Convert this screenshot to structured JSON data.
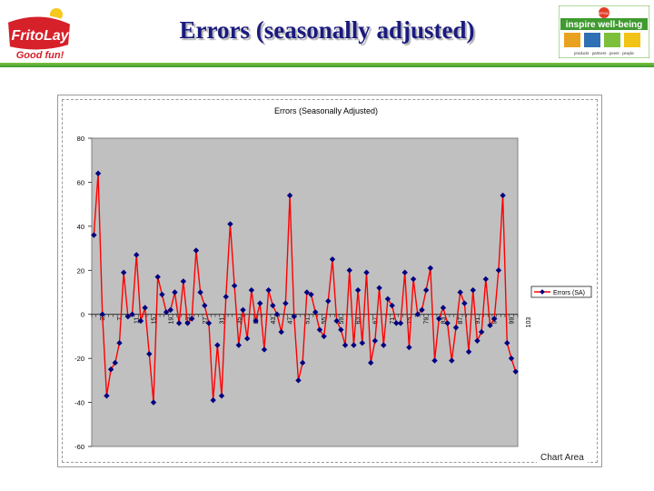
{
  "header": {
    "title": "Errors (seasonally adjusted)",
    "left_logo": {
      "brand": "FritoLay",
      "tagline": "Good fun!"
    },
    "right_logo": {
      "headline": "inspire well-being",
      "badge": "PEPSICO",
      "subline": "products · partners · peers · people"
    }
  },
  "tooltip": "Chart Area",
  "colors": {
    "series_line": "#ff0000",
    "marker": "#000080",
    "plot_bg": "#c0c0c0",
    "header_green": "#4aa533",
    "title": "#1a1a80"
  },
  "chart_data": {
    "type": "line",
    "title": "Errors (Seasonally Adjusted)",
    "xlabel": "",
    "ylabel": "",
    "ylim": [
      -60,
      80
    ],
    "yticks": [
      80,
      60,
      40,
      20,
      0,
      -20,
      -40,
      -60
    ],
    "x_start": 1,
    "xtick_labels": [
      "3",
      "7",
      "11",
      "15",
      "19",
      "23",
      "27",
      "31",
      "35",
      "39",
      "43",
      "47",
      "51",
      "55",
      "59",
      "63",
      "67",
      "71",
      "75",
      "79",
      "83",
      "87",
      "91",
      "95",
      "99",
      "103"
    ],
    "legend_position": "right",
    "grid": false,
    "series": [
      {
        "name": "Errors (SA)",
        "values": [
          36,
          64,
          0,
          -37,
          -25,
          -22,
          -13,
          19,
          -1,
          0,
          27,
          -3,
          3,
          -18,
          -40,
          17,
          9,
          1,
          2,
          10,
          -4,
          15,
          -4,
          -2,
          29,
          10,
          4,
          -4,
          -39,
          -14,
          -37,
          8,
          41,
          13,
          -14,
          2,
          -11,
          11,
          -3,
          5,
          -16,
          11,
          4,
          0,
          -8,
          5,
          54,
          -1,
          -30,
          -22,
          10,
          9,
          1,
          -7,
          -10,
          6,
          25,
          -3,
          -7,
          -14,
          20,
          -14,
          11,
          -13,
          19,
          -22,
          -12,
          12,
          -14,
          7,
          4,
          -4,
          -4,
          19,
          -15,
          16,
          0,
          2,
          11,
          21,
          -21,
          -2,
          3,
          -4,
          -21,
          -6,
          10,
          5,
          -17,
          11,
          -12,
          -8,
          16,
          -5,
          -2,
          20,
          54,
          -13,
          -20,
          -26
        ]
      }
    ]
  }
}
